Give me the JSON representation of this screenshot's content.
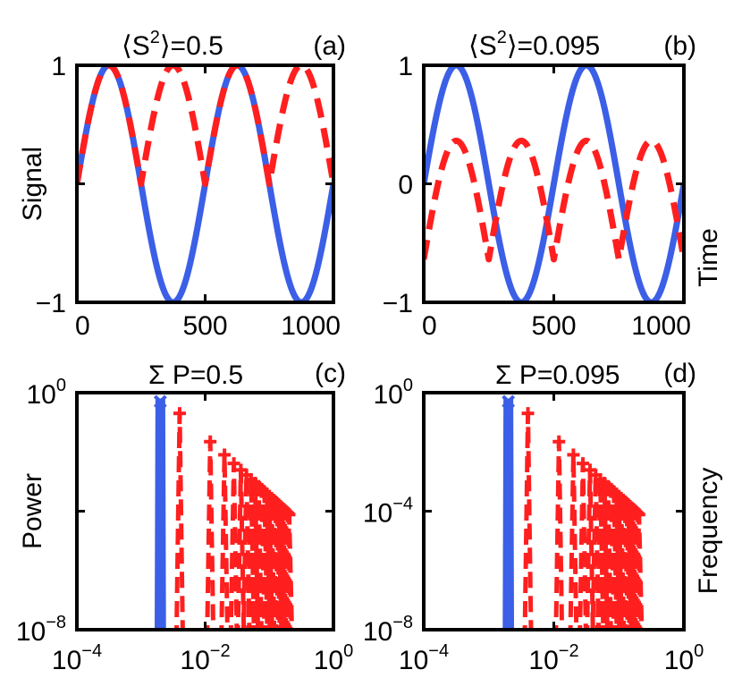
{
  "chart_data": [
    {
      "id": "a",
      "type": "line",
      "title_prefix": "⟨S",
      "title_sup": "2",
      "title_suffix": "⟩=0.5",
      "tag": "(a)",
      "ylabel": "Signal",
      "xlabel": "",
      "xlim": [
        0,
        1000
      ],
      "ylim": [
        -1,
        1
      ],
      "xticks": [
        0,
        500,
        1000
      ],
      "xtick_labels": [
        "0",
        "500",
        "1000"
      ],
      "yticks": [
        -1,
        0,
        1
      ],
      "ytick_labels": [
        "−1",
        "",
        "1"
      ],
      "series": [
        {
          "style": "solid",
          "color": "#3b5fe6",
          "function": "sin",
          "amplitude": 1,
          "period": 500,
          "phase": 0,
          "offset": 0
        },
        {
          "style": "dashed",
          "color": "#ff1f1f",
          "function": "abs_sin",
          "amplitude": 1,
          "period": 500,
          "phase": 0,
          "offset": 0
        }
      ]
    },
    {
      "id": "b",
      "type": "line",
      "title_prefix": "⟨S",
      "title_sup": "2",
      "title_suffix": "⟩=0.095",
      "tag": "(b)",
      "ylabel": "",
      "xlabel": "Time",
      "xlim": [
        0,
        1000
      ],
      "ylim": [
        -1,
        1
      ],
      "xticks": [
        0,
        500,
        1000
      ],
      "xtick_labels": [
        "0",
        "500",
        "1000"
      ],
      "yticks": [
        -1,
        0,
        1
      ],
      "ytick_labels": [
        "−1",
        "0",
        "1"
      ],
      "series": [
        {
          "style": "solid",
          "color": "#3b5fe6",
          "function": "sin",
          "amplitude": 1,
          "period": 500,
          "phase": 0,
          "offset": 0
        },
        {
          "style": "dashed",
          "color": "#ff1f1f",
          "function": "abs_sin",
          "amplitude": 1,
          "period": 500,
          "phase": 0,
          "offset": -0.637
        }
      ]
    },
    {
      "id": "c",
      "type": "line",
      "scale": "log",
      "title": "Σ P=0.5",
      "tag": "(c)",
      "ylabel": "Power",
      "xlabel": "",
      "xlim_exp": [
        -4,
        0
      ],
      "ylim_exp": [
        -8,
        0
      ],
      "xtick_exp": [
        -4,
        -2,
        0
      ],
      "ytick_exp": [
        -8,
        -4,
        0
      ],
      "ytick_label_exps": [
        "-8",
        "",
        "0"
      ],
      "series": [
        {
          "name": "",
          "style": "solid",
          "color": "#3b5fe6",
          "marker": "x",
          "x": [
            0.002
          ],
          "y": [
            0.5
          ]
        },
        {
          "name": "",
          "style": "dashed",
          "color": "#ff1f1f",
          "marker": "+",
          "fundamental": 0.004,
          "harmonics": 26,
          "y0": 0.2
        }
      ]
    },
    {
      "id": "d",
      "type": "line",
      "scale": "log",
      "title": "Σ P=0.095",
      "tag": "(d)",
      "ylabel": "",
      "xlabel": "Frequency",
      "xlim_exp": [
        -4,
        0
      ],
      "ylim_exp": [
        -8,
        0
      ],
      "xtick_exp": [
        -4,
        -2,
        0
      ],
      "ytick_exp": [
        -8,
        -4,
        0
      ],
      "ytick_label_exps": [
        "-8",
        "-4",
        "0"
      ],
      "series": [
        {
          "name": "",
          "style": "solid",
          "color": "#3b5fe6",
          "marker": "x",
          "x": [
            0.002
          ],
          "y": [
            0.5
          ]
        },
        {
          "name": "",
          "style": "dashed",
          "color": "#ff1f1f",
          "marker": "+",
          "fundamental": 0.004,
          "harmonics": 26,
          "y0": 0.2
        }
      ]
    }
  ]
}
